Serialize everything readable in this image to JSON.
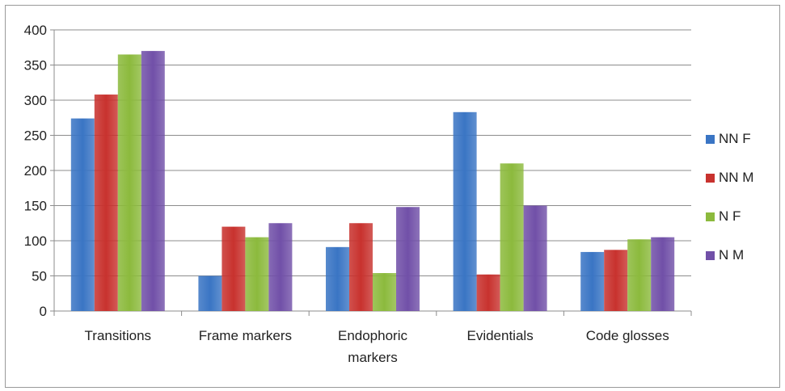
{
  "chart_data": {
    "type": "bar",
    "categories": [
      "Transitions",
      "Frame markers",
      "Endophoric markers",
      "Evidentials",
      "Code glosses"
    ],
    "series": [
      {
        "name": "NN F",
        "color": "#3a75c4",
        "values": [
          274,
          50,
          91,
          283,
          84
        ]
      },
      {
        "name": "NN M",
        "color": "#c8322e",
        "values": [
          308,
          120,
          125,
          52,
          87
        ]
      },
      {
        "name": "N F",
        "color": "#8cba3d",
        "values": [
          365,
          105,
          54,
          210,
          102
        ]
      },
      {
        "name": "N M",
        "color": "#7150a8",
        "values": [
          370,
          125,
          148,
          150,
          105
        ]
      }
    ],
    "ylim": [
      0,
      400
    ],
    "yticks": [
      0,
      50,
      100,
      150,
      200,
      250,
      300,
      350,
      400
    ],
    "grid": true,
    "legend_position": "right",
    "title": "",
    "xlabel": "",
    "ylabel": ""
  }
}
